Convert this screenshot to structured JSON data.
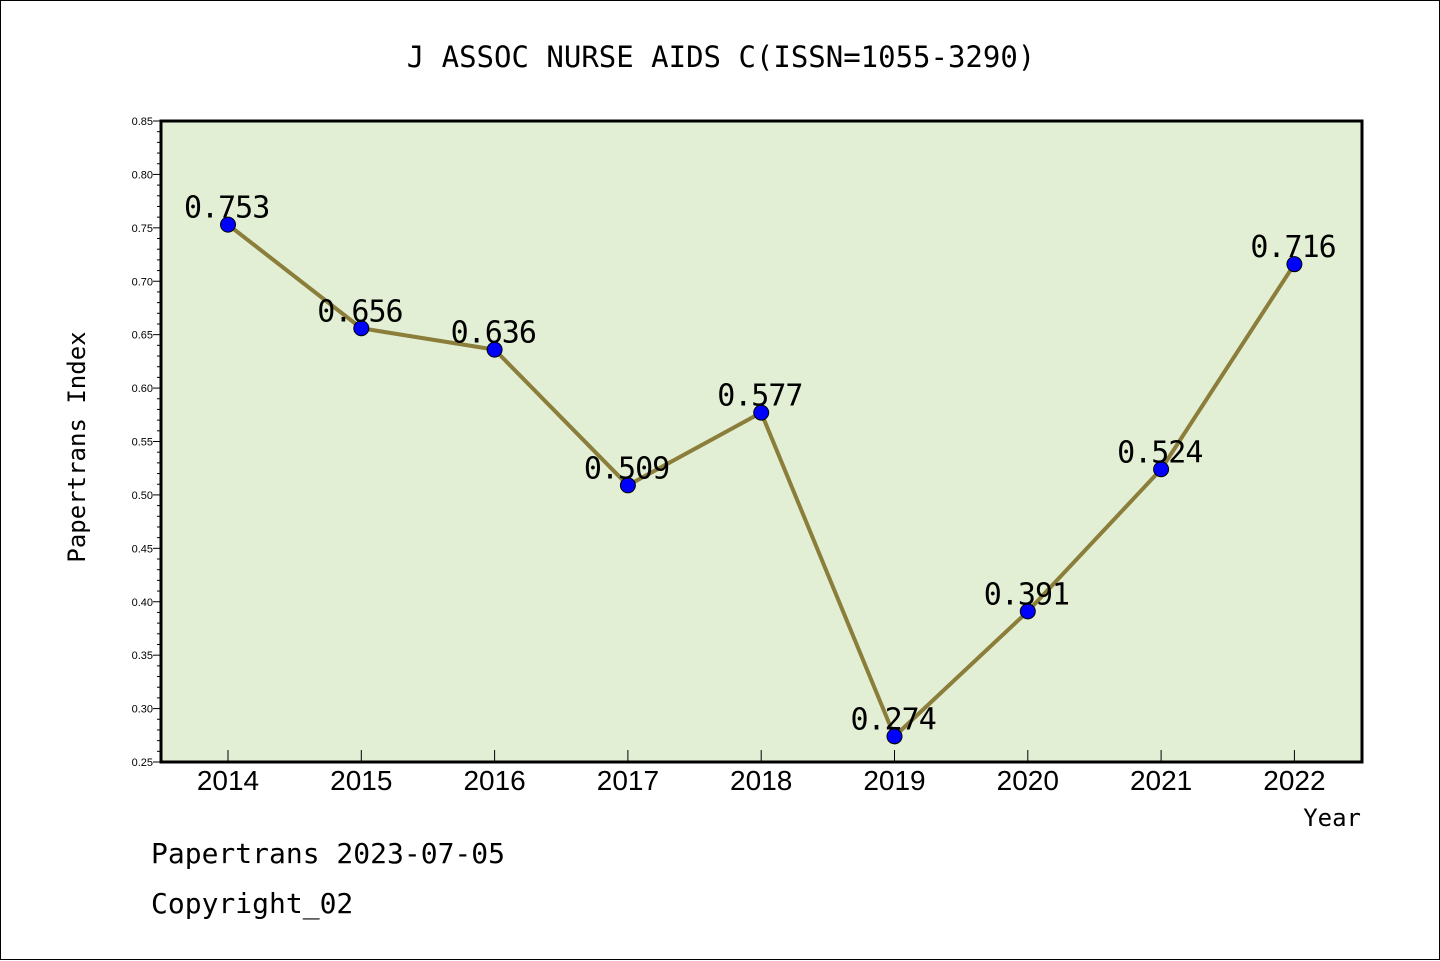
{
  "footer": {
    "source": "Papertrans 2023-07-05",
    "copyright": "Copyright_02"
  },
  "chart_data": {
    "type": "line",
    "title": "J ASSOC NURSE AIDS C(ISSN=1055-3290)",
    "xlabel": "Year",
    "ylabel": "Papertrans Index",
    "categories": [
      "2014",
      "2015",
      "2016",
      "2017",
      "2018",
      "2019",
      "2020",
      "2021",
      "2022"
    ],
    "values": [
      0.753,
      0.656,
      0.636,
      0.509,
      0.577,
      0.274,
      0.391,
      0.524,
      0.716
    ],
    "data_labels": [
      "0.753",
      "0.656",
      "0.636",
      "0.509",
      "0.577",
      "0.274",
      "0.391",
      "0.524",
      "0.716"
    ],
    "ylim": [
      0.25,
      0.85
    ],
    "yticks": [
      "0.25",
      "0.30",
      "0.35",
      "0.40",
      "0.45",
      "0.50",
      "0.55",
      "0.60",
      "0.65",
      "0.70",
      "0.75",
      "0.80",
      "0.85"
    ],
    "grid": false,
    "colors": {
      "plot_background": "#e2efd4",
      "line": "#8b7d3a",
      "marker": "#0000ff"
    }
  }
}
